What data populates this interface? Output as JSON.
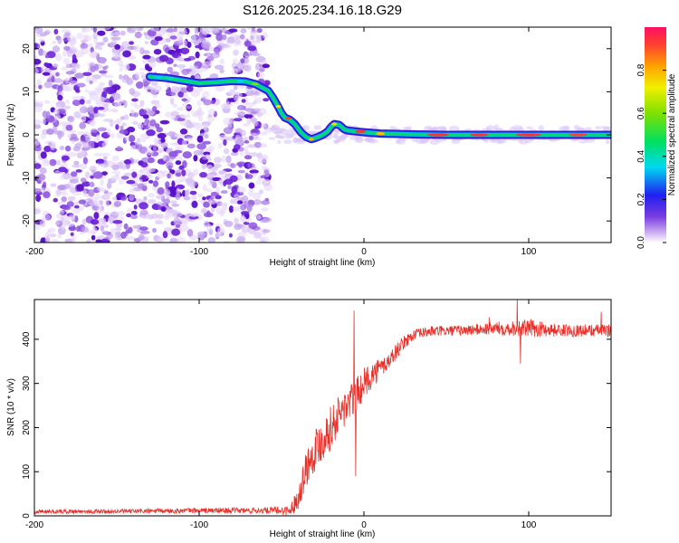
{
  "title": "S126.2025.234.16.18.G29",
  "chart_data": [
    {
      "type": "heatmap",
      "name": "spectrogram",
      "xlabel": "Height of straight line (km)",
      "ylabel": "Frequency (Hz)",
      "xlim": [
        -200,
        150
      ],
      "ylim": [
        -25,
        25
      ],
      "xticks": [
        -200,
        -100,
        0,
        100
      ],
      "yticks": [
        -20,
        -10,
        0,
        10,
        20
      ],
      "noise_region_x": [
        -200,
        -58
      ],
      "ridge": {
        "x": [
          -130,
          -120,
          -110,
          -100,
          -90,
          -80,
          -72,
          -66,
          -62,
          -58,
          -55,
          -52,
          -50,
          -48,
          -45,
          -42,
          -40,
          -38,
          -35,
          -32,
          -30,
          -28,
          -25,
          -22,
          -20,
          -18,
          -15,
          -12,
          -10,
          -5,
          0,
          10,
          20,
          30,
          50,
          80,
          100,
          120,
          150
        ],
        "y": [
          13.5,
          13.2,
          12.6,
          12.0,
          12.2,
          12.5,
          12.4,
          11.8,
          11.0,
          10.2,
          8.5,
          6.5,
          5.0,
          4.0,
          3.5,
          2.5,
          1.5,
          0.5,
          -0.5,
          -1.0,
          -0.8,
          -0.5,
          0.0,
          0.8,
          1.8,
          2.5,
          2.3,
          1.3,
          1.0,
          0.8,
          0.6,
          0.3,
          0.2,
          0.1,
          0.0,
          0.0,
          0.0,
          0.0,
          0.0
        ]
      },
      "colorbar": {
        "label": "Normalized spectral amplitude",
        "range": [
          0,
          1
        ],
        "ticks": [
          0.0,
          0.2,
          0.4,
          0.6,
          0.8
        ]
      }
    },
    {
      "type": "line",
      "name": "snr",
      "xlabel": "Height of straight line (km)",
      "ylabel": "SNR (10 * v/v)",
      "xlim": [
        -200,
        150
      ],
      "ylim": [
        0,
        490
      ],
      "xticks": [
        -200,
        -100,
        0,
        100
      ],
      "yticks": [
        0,
        100,
        200,
        300,
        400
      ],
      "series": [
        {
          "name": "SNR",
          "color": "#e8302a",
          "x": [
            -200,
            -150,
            -100,
            -60,
            -45,
            -40,
            -35,
            -30,
            -25,
            -20,
            -15,
            -10,
            -5,
            0,
            5,
            10,
            15,
            20,
            25,
            30,
            40,
            60,
            80,
            100,
            120,
            150
          ],
          "mean": [
            10,
            10,
            12,
            12,
            12,
            40,
            110,
            150,
            175,
            200,
            230,
            250,
            270,
            300,
            320,
            335,
            350,
            375,
            395,
            410,
            418,
            420,
            425,
            425,
            420,
            420
          ],
          "amp": [
            5,
            5,
            6,
            7,
            12,
            25,
            45,
            50,
            50,
            50,
            45,
            45,
            40,
            35,
            30,
            25,
            20,
            18,
            15,
            12,
            12,
            12,
            15,
            20,
            14,
            14
          ]
        }
      ],
      "spikes": [
        {
          "x": -6,
          "y": 465
        },
        {
          "x": -5,
          "y": 90
        },
        {
          "x": 93,
          "y": 490
        },
        {
          "x": 95,
          "y": 345
        },
        {
          "x": 76,
          "y": 450
        },
        {
          "x": 144,
          "y": 462
        }
      ]
    }
  ]
}
